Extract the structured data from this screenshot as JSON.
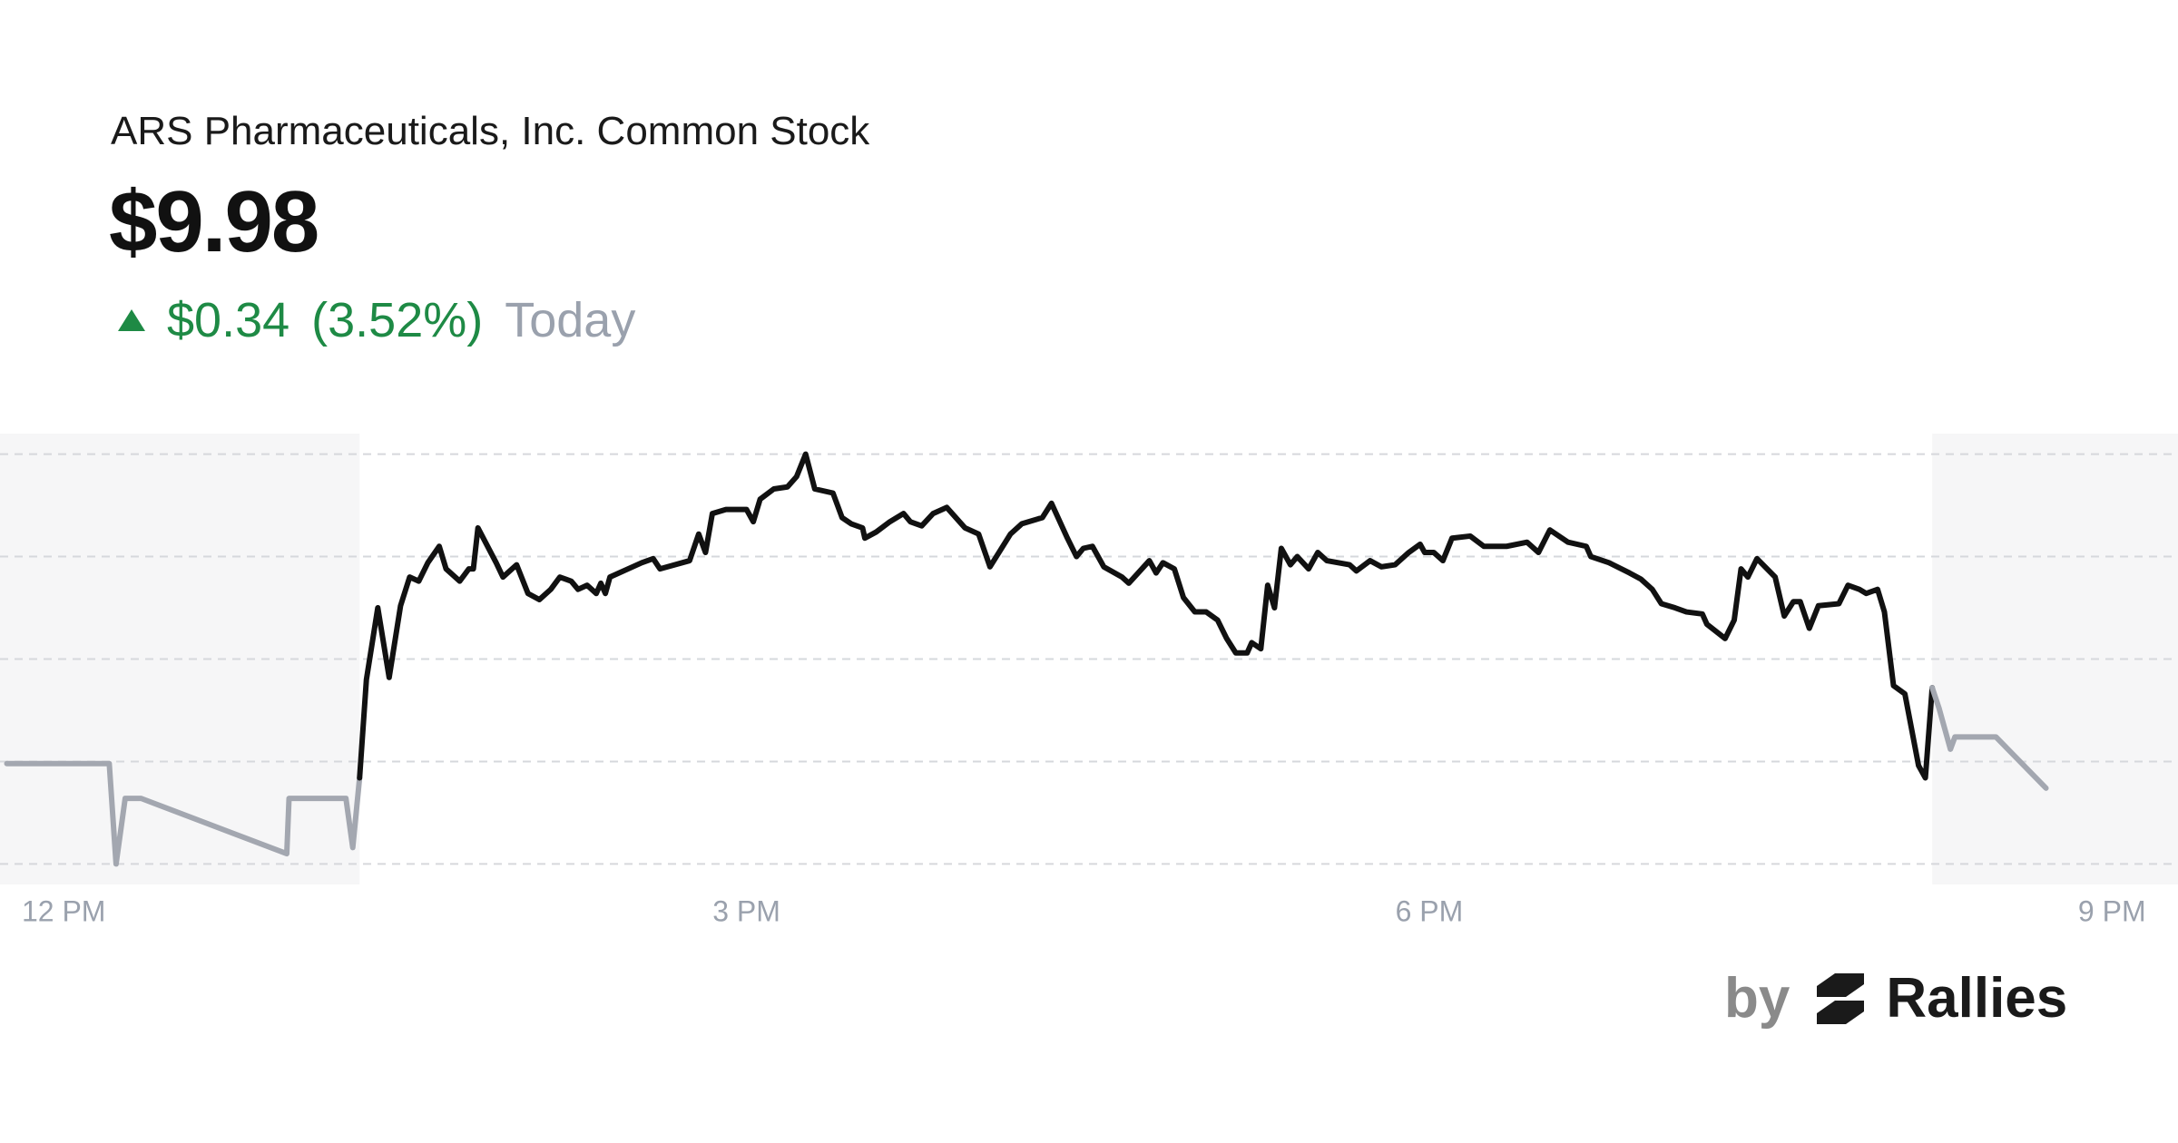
{
  "chart_data": {
    "type": "line",
    "title": "ARS Pharmaceuticals, Inc. Common Stock",
    "price": "$9.98",
    "change": "$0.34",
    "change_percent": "(3.52%)",
    "period": "Today",
    "brand_prefix": "by",
    "brand": "Rallies",
    "xlim": [
      11.72,
      21.29
    ],
    "ylim": [
      9.0,
      11.2
    ],
    "xticks": [
      {
        "value": 12,
        "label": "12 PM"
      },
      {
        "value": 15,
        "label": "3 PM"
      },
      {
        "value": 18,
        "label": "6 PM"
      },
      {
        "value": 21,
        "label": "9 PM"
      }
    ],
    "yticks": [
      9.1,
      9.6,
      10.1,
      10.6,
      11.1
    ],
    "grid": true,
    "series": [
      {
        "color": "#a3a7b0",
        "shaded": true,
        "x": [
          11.75,
          12.2,
          12.23,
          12.27,
          12.34,
          12.98,
          12.99,
          13.24,
          13.27,
          13.3
        ],
        "values": [
          9.59,
          9.59,
          9.1,
          9.42,
          9.42,
          9.15,
          9.42,
          9.42,
          9.18,
          9.52
        ]
      },
      {
        "color": "#111111",
        "shaded": false,
        "x": [
          13.3,
          13.33,
          13.38,
          13.43,
          13.48,
          13.52,
          13.56,
          13.6,
          13.65,
          13.68,
          13.74,
          13.78,
          13.8,
          13.82,
          13.9,
          13.93,
          13.99,
          14.04,
          14.09,
          14.14,
          14.18,
          14.23,
          14.26,
          14.3,
          14.34,
          14.36,
          14.38,
          14.4,
          14.54,
          14.59,
          14.62,
          14.75,
          14.79,
          14.82,
          14.85,
          14.91,
          15.0,
          15.03,
          15.06,
          15.12,
          15.18,
          15.22,
          15.26,
          15.3,
          15.38,
          15.42,
          15.46,
          15.51,
          15.52,
          15.57,
          15.63,
          15.69,
          15.72,
          15.77,
          15.82,
          15.88,
          15.96,
          16.02,
          16.07,
          16.16,
          16.21,
          16.3,
          16.34,
          16.41,
          16.45,
          16.48,
          16.52,
          16.57,
          16.65,
          16.68,
          16.77,
          16.8,
          16.83,
          16.88,
          16.92,
          16.97,
          17.02,
          17.07,
          17.11,
          17.15,
          17.2,
          17.22,
          17.26,
          17.29,
          17.32,
          17.35,
          17.39,
          17.42,
          17.47,
          17.51,
          17.55,
          17.65,
          17.68,
          17.74,
          17.79,
          17.85,
          17.91,
          17.96,
          17.98,
          18.02,
          18.06,
          18.1,
          18.18,
          18.24,
          18.34,
          18.43,
          18.48,
          18.53,
          18.61,
          18.69,
          18.71,
          18.79,
          18.88,
          18.93,
          18.98,
          19.02,
          19.08,
          19.13,
          19.2,
          19.22,
          19.3,
          19.34,
          19.37,
          19.4,
          19.44,
          19.52,
          19.56,
          19.6,
          19.63,
          19.67,
          19.71,
          19.8,
          19.84,
          19.89,
          19.92,
          19.97,
          20.0,
          20.04,
          20.09,
          20.15,
          20.18,
          20.21
        ],
        "values": [
          9.52,
          10.0,
          10.35,
          10.01,
          10.36,
          10.5,
          10.48,
          10.57,
          10.65,
          10.54,
          10.48,
          10.54,
          10.54,
          10.74,
          10.57,
          10.5,
          10.56,
          10.42,
          10.39,
          10.44,
          10.5,
          10.48,
          10.44,
          10.46,
          10.42,
          10.47,
          10.42,
          10.5,
          10.57,
          10.59,
          10.54,
          10.58,
          10.71,
          10.62,
          10.81,
          10.83,
          10.83,
          10.77,
          10.88,
          10.93,
          10.94,
          10.99,
          11.1,
          10.93,
          10.91,
          10.79,
          10.76,
          10.74,
          10.69,
          10.72,
          10.77,
          10.81,
          10.77,
          10.75,
          10.81,
          10.84,
          10.74,
          10.71,
          10.55,
          10.71,
          10.76,
          10.79,
          10.86,
          10.69,
          10.6,
          10.64,
          10.65,
          10.55,
          10.5,
          10.47,
          10.58,
          10.52,
          10.57,
          10.54,
          10.4,
          10.33,
          10.33,
          10.29,
          10.2,
          10.13,
          10.13,
          10.18,
          10.15,
          10.46,
          10.35,
          10.64,
          10.56,
          10.6,
          10.54,
          10.62,
          10.58,
          10.56,
          10.53,
          10.58,
          10.55,
          10.56,
          10.62,
          10.66,
          10.62,
          10.62,
          10.58,
          10.69,
          10.7,
          10.65,
          10.65,
          10.67,
          10.62,
          10.73,
          10.67,
          10.65,
          10.6,
          10.57,
          10.52,
          10.49,
          10.44,
          10.37,
          10.35,
          10.33,
          10.32,
          10.27,
          10.2,
          10.29,
          10.54,
          10.5,
          10.59,
          10.5,
          10.31,
          10.38,
          10.38,
          10.25,
          10.36,
          10.37,
          10.46,
          10.44,
          10.42,
          10.44,
          10.33,
          9.97,
          9.93,
          9.58,
          9.52,
          9.96
        ]
      },
      {
        "color": "#a3a7b0",
        "shaded": true,
        "x": [
          20.21,
          20.24,
          20.29,
          20.31,
          20.49,
          20.71
        ],
        "values": [
          9.96,
          9.86,
          9.66,
          9.72,
          9.72,
          9.47
        ]
      }
    ]
  }
}
